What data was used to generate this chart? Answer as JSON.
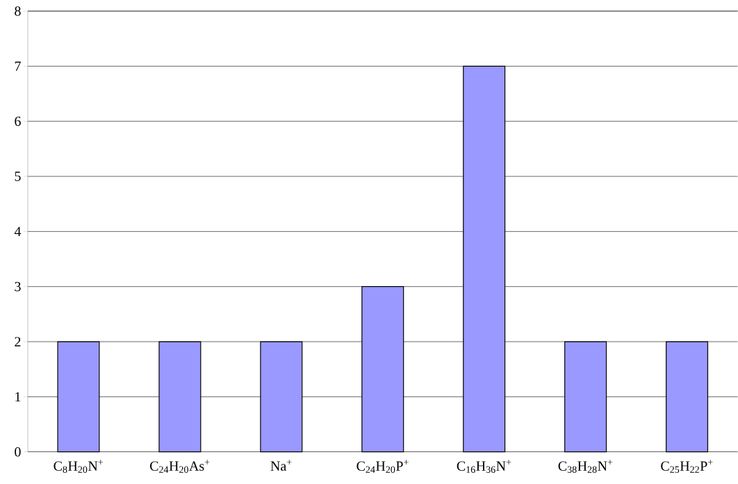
{
  "chart_data": {
    "type": "bar",
    "categories": [
      "C$_{8}$H$_{20}$N$^{+}$",
      "C$_{24}$H$_{20}$As$^{+}$",
      "Na$^{+}$",
      "C$_{24}$H$_{20}$P$^{+}$",
      "C$_{16}$H$_{36}$N$^{+}$",
      "C$_{38}$H$_{28}$N$^{+}$",
      "C$_{25}$H$_{22}$P$^{+}$"
    ],
    "values": [
      2,
      2,
      2,
      3,
      7,
      2,
      2
    ],
    "color": "#9999ff",
    "ylim": [
      0,
      8
    ],
    "yticks": [
      0,
      1,
      2,
      3,
      4,
      5,
      6,
      7,
      8
    ],
    "grid": "y"
  }
}
